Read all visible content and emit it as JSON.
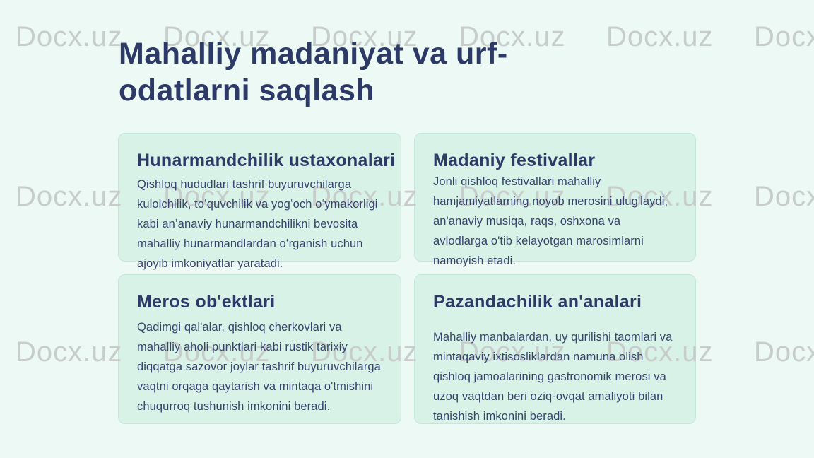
{
  "slide": {
    "title": "Mahalliy madaniyat va urf-\nodatlarni saqlash"
  },
  "cards": [
    {
      "title": "Hunarmandchilik ustaxonalari",
      "body": "Qishloq hududlari tashrif buyuruvchilarga kulolchilik, toʻquvchilik va yogʻoch oʻymakorligi kabi anʼanaviy hunarmandchilikni bevosita mahalliy hunarmandlardan oʻrganish uchun ajoyib imkoniyatlar yaratadi."
    },
    {
      "title": "Madaniy festivallar",
      "body": "Jonli qishloq festivallari mahalliy hamjamiyatlarning noyob merosini ulug'laydi, an'anaviy musiqa, raqs, oshxona va avlodlarga o'tib kelayotgan marosimlarni namoyish etadi."
    },
    {
      "title": "Meros ob'ektlari",
      "body": "Qadimgi qal'alar, qishloq cherkovlari va mahalliy aholi punktlari kabi rustik tarixiy diqqatga sazovor joylar tashrif buyuruvchilarga vaqtni orqaga qaytarish va mintaqa o'tmishini chuqurroq tushunish imkonini beradi."
    },
    {
      "title": "Pazandachilik an'analari",
      "body": "Mahalliy manbalardan, uy qurilishi taomlari va mintaqaviy ixtisosliklardan namuna olish qishloq jamoalarining gastronomik merosi va uzoq vaqtdan beri oziq-ovqat amaliyoti bilan tanishish imkonini beradi."
    }
  ],
  "watermark": {
    "text": "Docx.uz"
  },
  "colors": {
    "page_bg": "#edf9f4",
    "card_bg": "#d9f2e8",
    "card_border": "#c3e8d9",
    "heading": "#2d3a68",
    "body_text": "#36436e",
    "watermark": "#c6cdcb"
  }
}
